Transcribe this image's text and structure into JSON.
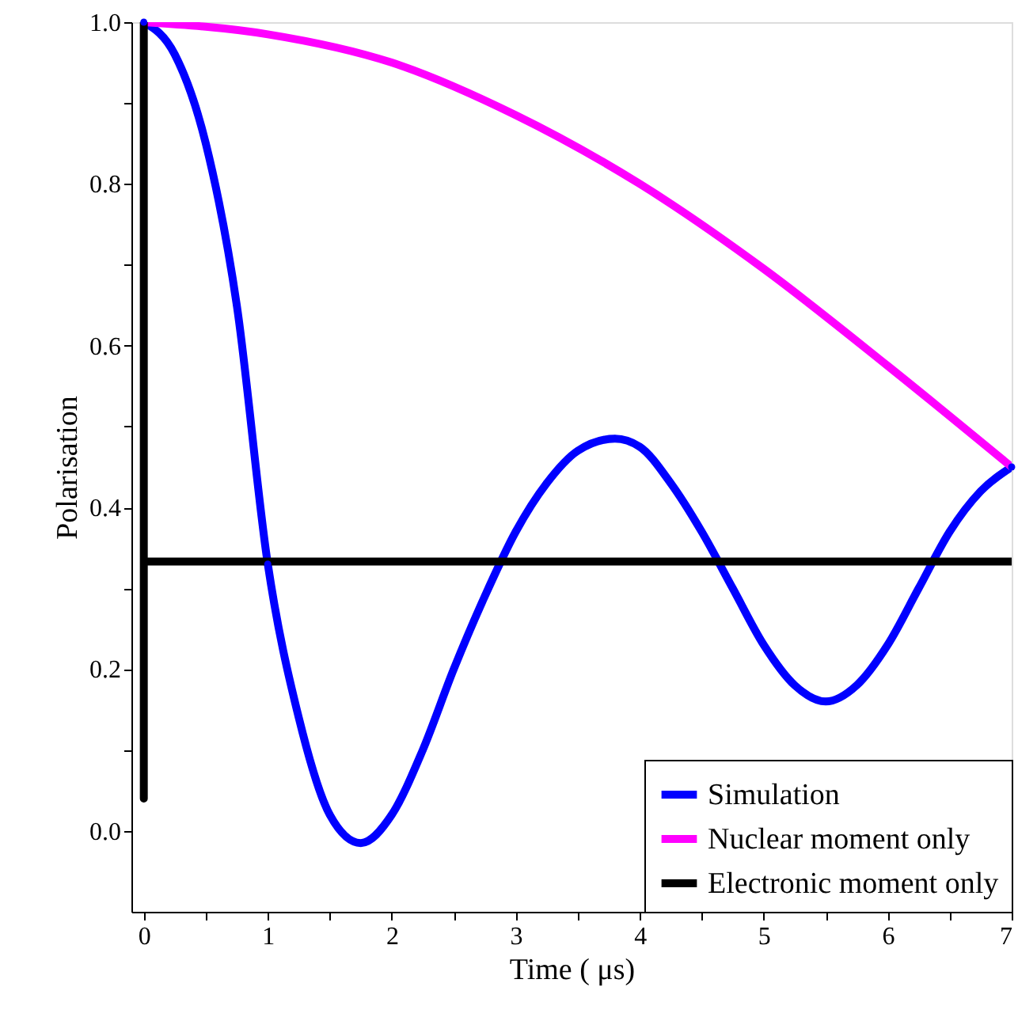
{
  "chart_data": {
    "type": "line",
    "xlabel": "Time ( μs)",
    "ylabel": "Polarisation",
    "xlim": [
      -0.1,
      7
    ],
    "ylim": [
      -0.1,
      1.0
    ],
    "xticks": [
      0,
      {
        "value": 0.5,
        "label": null
      },
      1,
      {
        "value": 1.5,
        "label": null
      },
      2,
      {
        "value": 2.5,
        "label": null
      },
      3,
      {
        "value": 3.5,
        "label": null
      },
      4,
      {
        "value": 4.5,
        "label": null
      },
      5,
      {
        "value": 5.5,
        "label": null
      },
      6,
      {
        "value": 6.5,
        "label": null
      },
      7
    ],
    "yticks": [
      {
        "value": 0,
        "label": "0.0"
      },
      {
        "value": 0.1,
        "label": null
      },
      {
        "value": 0.2,
        "label": "0.2"
      },
      {
        "value": 0.3,
        "label": null
      },
      {
        "value": 0.4,
        "label": "0.4"
      },
      {
        "value": 0.5,
        "label": null
      },
      {
        "value": 0.6,
        "label": "0.6"
      },
      {
        "value": 0.7,
        "label": null
      },
      {
        "value": 0.8,
        "label": "0.8"
      },
      {
        "value": 0.9,
        "label": null
      },
      {
        "value": 1.0,
        "label": "1.0"
      }
    ],
    "grid": false,
    "legend": "bottom right",
    "line_style": "solid",
    "series": [
      {
        "name": "Simulation",
        "color": "#0000ff",
        "marker": "circle",
        "x": [
          0,
          0.25,
          0.5,
          0.75,
          1.0,
          1.25,
          1.5,
          1.75,
          2.0,
          2.25,
          2.5,
          2.75,
          3.0,
          3.25,
          3.5,
          3.8,
          4.0,
          4.25,
          4.5,
          4.75,
          5.0,
          5.25,
          5.5,
          5.75,
          6.0,
          6.25,
          6.5,
          6.75,
          7.0
        ],
        "values": [
          1.0,
          0.96,
          0.85,
          0.65,
          0.33,
          0.14,
          0.02,
          -0.015,
          0.02,
          0.1,
          0.2,
          0.29,
          0.37,
          0.43,
          0.47,
          0.485,
          0.475,
          0.43,
          0.37,
          0.3,
          0.23,
          0.18,
          0.16,
          0.18,
          0.23,
          0.3,
          0.37,
          0.42,
          0.45
        ]
      },
      {
        "name": "Nuclear moment only",
        "color": "#ff00ff",
        "marker": "none",
        "x": [
          0,
          1,
          2,
          3,
          4,
          5,
          6,
          7
        ],
        "values": [
          1.0,
          0.985,
          0.95,
          0.885,
          0.8,
          0.695,
          0.575,
          0.45
        ]
      },
      {
        "name": "Electronic moment only",
        "color": "#000000",
        "marker": "none",
        "x": [
          0,
          0,
          0,
          7
        ],
        "values": [
          1.0,
          0.04,
          0.333,
          0.333
        ]
      }
    ]
  }
}
